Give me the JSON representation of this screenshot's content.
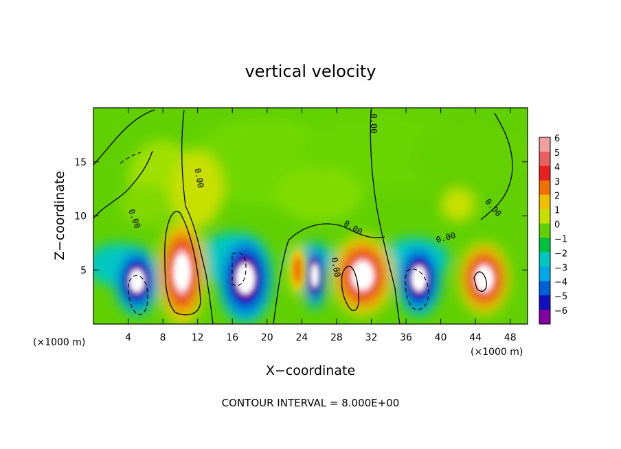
{
  "chart_data": {
    "type": "heatmap",
    "title": "vertical velocity",
    "xlabel": "X−coordinate",
    "ylabel": "Z−coordinate",
    "x_unit": "(×1000 m)",
    "x_unit_right": "(×1000 m)",
    "xlim": [
      0,
      50
    ],
    "ylim": [
      0,
      20
    ],
    "x_ticks": [
      4,
      8,
      12,
      16,
      20,
      24,
      28,
      32,
      36,
      40,
      44,
      48
    ],
    "y_ticks": [
      5,
      10,
      15
    ],
    "colorbar": {
      "levels": [
        6,
        5,
        4,
        3,
        2,
        1,
        0,
        -1,
        -2,
        -3,
        -4,
        -5,
        -6
      ],
      "labels": [
        "6",
        "5",
        "4",
        "3",
        "2",
        "1",
        "0",
        "−1",
        "−2",
        "−3",
        "−4",
        "−5",
        "−6"
      ],
      "colors": [
        "#f0a0a0",
        "#e86060",
        "#e82020",
        "#f07000",
        "#f0c000",
        "#c8e000",
        "#60d000",
        "#00c040",
        "#00c8c0",
        "#00a8e8",
        "#0060d8",
        "#1010c0",
        "#8000a0"
      ]
    },
    "cells": [
      {
        "x": 5,
        "z": 3.5,
        "w": -7
      },
      {
        "x": 10,
        "z": 4.5,
        "w": 8
      },
      {
        "x": 18,
        "z": 4,
        "w": -7
      },
      {
        "x": 25.5,
        "z": 4.5,
        "w": -4
      },
      {
        "x": 31,
        "z": 4.5,
        "w": 7
      },
      {
        "x": 37.5,
        "z": 4,
        "w": -6
      },
      {
        "x": 45,
        "z": 4,
        "w": 6
      },
      {
        "x": 22,
        "z": 4,
        "w": 2
      },
      {
        "x": 12,
        "z": 13,
        "w": 1
      }
    ],
    "contour_label": "0.00",
    "contour_interval_text": "CONTOUR INTERVAL = 8.000E+00"
  }
}
